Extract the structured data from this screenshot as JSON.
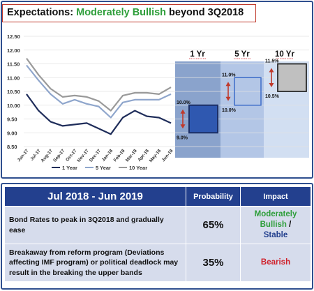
{
  "title": {
    "prefix": "Expectations: ",
    "highlight": "Moderately Bullish",
    "suffix": " beyond 3Q2018"
  },
  "chart_data": {
    "type": "line",
    "x": [
      "Jun-17",
      "Jul-17",
      "Aug-17",
      "Sep-17",
      "Oct-17",
      "Nov-17",
      "Dec-17",
      "Jan-18",
      "Feb-18",
      "Mar-18",
      "Apr-18",
      "May-18",
      "Jun-18"
    ],
    "ylim": [
      8.5,
      12.5
    ],
    "yticks": [
      "12.50",
      "12.00",
      "11.50",
      "11.00",
      "10.50",
      "10.00",
      "9.50",
      "9.00",
      "8.50"
    ],
    "series": [
      {
        "name": "1 Year",
        "color": "#1f2d5a",
        "values": [
          10.4,
          9.8,
          9.4,
          9.25,
          9.3,
          9.35,
          9.15,
          8.95,
          9.55,
          9.8,
          9.6,
          9.55,
          9.35
        ]
      },
      {
        "name": "5 Year",
        "color": "#8fa6cc",
        "values": [
          11.45,
          10.9,
          10.4,
          10.05,
          10.2,
          10.05,
          9.95,
          9.55,
          10.1,
          10.2,
          10.2,
          10.2,
          10.4
        ]
      },
      {
        "name": "10 Year",
        "color": "#9a9a9a",
        "values": [
          11.7,
          11.1,
          10.6,
          10.3,
          10.35,
          10.3,
          10.15,
          9.8,
          10.35,
          10.45,
          10.45,
          10.4,
          10.65
        ]
      }
    ],
    "forecast": [
      {
        "label": "1 Yr",
        "low": 9.0,
        "high": 10.0,
        "low_label": "9.0%",
        "high_label": "10.0%"
      },
      {
        "label": "5 Yr",
        "low": 10.0,
        "high": 11.0,
        "low_label": "10.0%",
        "high_label": "11.0%"
      },
      {
        "label": "10 Yr",
        "low": 10.5,
        "high": 11.5,
        "low_label": "10.5%",
        "high_label": "11.5%"
      }
    ]
  },
  "table": {
    "period": "Jul 2018 - Jun 2019",
    "prob_header": "Probability",
    "impact_header": "Impact",
    "rows": [
      {
        "desc": "Bond Rates to peak in 3Q2018 and gradually ease",
        "prob": "65%",
        "impact_line1": "Moderately Bullish",
        "impact_sep": " /",
        "impact_line2": "Stable"
      },
      {
        "desc": "Breakaway from reform program (Deviations affecting IMF program) or political deadlock may result in the breaking the upper bands",
        "prob": "35%",
        "impact_line1": "Bearish"
      }
    ]
  }
}
